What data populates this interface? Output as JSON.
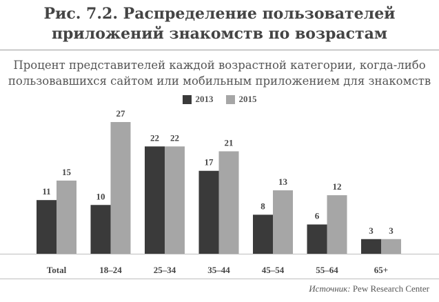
{
  "title": "Рис. 7.2. Распределение пользователей приложений знакомств по возрастам",
  "subtitle": "Процент представителей каждой возрастной категории, когда-либо пользовавшихся сайтом или мобильным приложением для знакомств",
  "source": {
    "label": "Источник:",
    "text": "Pew Research Center"
  },
  "colors": {
    "s2013": "#3a3a3a",
    "s2015": "#a6a6a6",
    "label": "#555555"
  },
  "chart_data": {
    "type": "bar",
    "categories": [
      "Total",
      "18–24",
      "25–34",
      "35–44",
      "45–54",
      "55–64",
      "65+"
    ],
    "series": [
      {
        "name": "2013",
        "values": [
          11,
          10,
          22,
          17,
          8,
          6,
          3
        ]
      },
      {
        "name": "2015",
        "values": [
          15,
          27,
          22,
          21,
          13,
          12,
          3
        ]
      }
    ],
    "legend": "top-center",
    "grid": false
  }
}
